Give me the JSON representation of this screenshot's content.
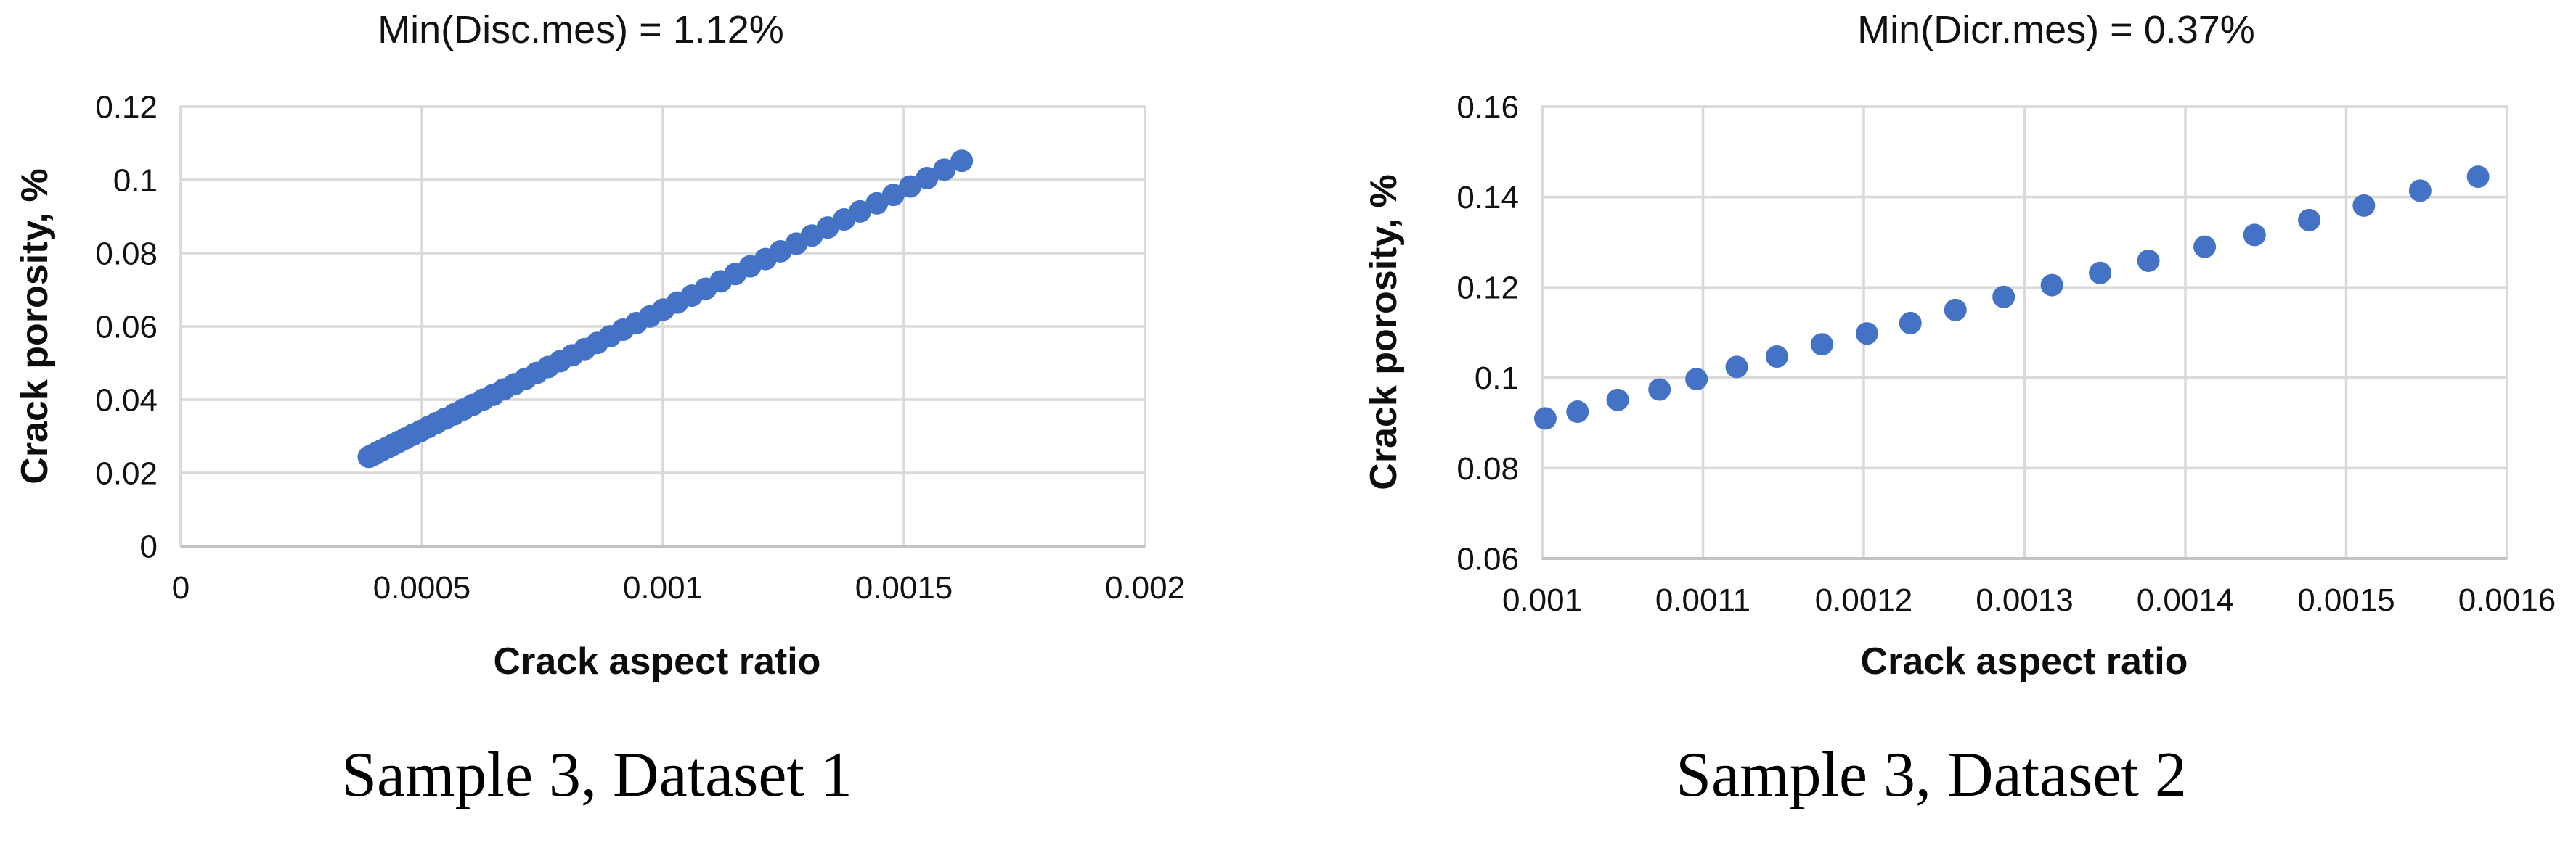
{
  "figure": {
    "background": "#ffffff",
    "marker_color": "#4472C4",
    "gridline_color": "#d9d9d9"
  },
  "chart_data": [
    {
      "type": "scatter",
      "title": "Min(Disc.mes) = 1.12%",
      "caption": "Sample 3, Dataset 1",
      "xlabel": "Crack aspect ratio",
      "ylabel": "Crack porosity, %",
      "xlim": [
        0,
        0.002
      ],
      "ylim": [
        0,
        0.12
      ],
      "x_ticks": [
        "0",
        "0.0005",
        "0.001",
        "0.0015",
        "0.002"
      ],
      "y_ticks": [
        "0",
        "0.02",
        "0.04",
        "0.06",
        "0.08",
        "0.1",
        "0.12"
      ],
      "grid": true,
      "legend": false,
      "marker_color": "#4472C4",
      "points": {
        "x": [
          0.00039,
          0.000393,
          0.0004,
          0.000408,
          0.000417,
          0.000428,
          0.00044,
          0.000452,
          0.000466,
          0.000481,
          0.000497,
          0.000513,
          0.00053,
          0.000548,
          0.000567,
          0.000586,
          0.000606,
          0.000627,
          0.000648,
          0.00067,
          0.000692,
          0.000715,
          0.000738,
          0.000762,
          0.000787,
          0.000812,
          0.000838,
          0.000864,
          0.00089,
          0.000917,
          0.000945,
          0.000973,
          0.001001,
          0.00103,
          0.00106,
          0.001089,
          0.00112,
          0.00115,
          0.001181,
          0.001213,
          0.001244,
          0.001277,
          0.001309,
          0.001342,
          0.001376,
          0.001409,
          0.001444,
          0.001478,
          0.001513,
          0.001548,
          0.001584,
          0.00162
        ],
        "y": [
          0.0244,
          0.0246,
          0.025,
          0.0256,
          0.0262,
          0.0269,
          0.0277,
          0.0285,
          0.0294,
          0.0304,
          0.0314,
          0.0325,
          0.0336,
          0.0348,
          0.036,
          0.0373,
          0.0386,
          0.04,
          0.0413,
          0.0428,
          0.0442,
          0.0457,
          0.0473,
          0.0489,
          0.0505,
          0.0521,
          0.0538,
          0.0555,
          0.0573,
          0.0591,
          0.0609,
          0.0627,
          0.0646,
          0.0665,
          0.0684,
          0.0703,
          0.0723,
          0.0743,
          0.0764,
          0.0784,
          0.0805,
          0.0826,
          0.0848,
          0.087,
          0.0892,
          0.0914,
          0.0936,
          0.0959,
          0.0982,
          0.1005,
          0.1028,
          0.1052
        ]
      }
    },
    {
      "type": "scatter",
      "title": "Min(Dicr.mes) = 0.37%",
      "caption": "Sample 3, Dataset 2",
      "xlabel": "Crack aspect ratio",
      "ylabel": "Crack porosity, %",
      "xlim": [
        0.001,
        0.0016
      ],
      "ylim": [
        0.06,
        0.16
      ],
      "x_ticks": [
        "0.001",
        "0.0011",
        "0.0012",
        "0.0013",
        "0.0014",
        "0.0015",
        "0.0016"
      ],
      "y_ticks": [
        "0.06",
        "0.08",
        "0.1",
        "0.12",
        "0.14",
        "0.16"
      ],
      "grid": true,
      "legend": false,
      "marker_color": "#4472C4",
      "points": {
        "x": [
          0.001002,
          0.001022,
          0.001047,
          0.001073,
          0.001096,
          0.001121,
          0.001146,
          0.001174,
          0.001202,
          0.001229,
          0.001257,
          0.001287,
          0.001317,
          0.001347,
          0.001377,
          0.001412,
          0.001443,
          0.001477,
          0.001511,
          0.001546,
          0.001582
        ],
        "y": [
          0.091,
          0.0925,
          0.0951,
          0.0974,
          0.0997,
          0.1024,
          0.1047,
          0.1074,
          0.1098,
          0.1121,
          0.115,
          0.1179,
          0.1205,
          0.1232,
          0.1259,
          0.129,
          0.1316,
          0.1349,
          0.1381,
          0.1414,
          0.1445
        ]
      }
    }
  ]
}
